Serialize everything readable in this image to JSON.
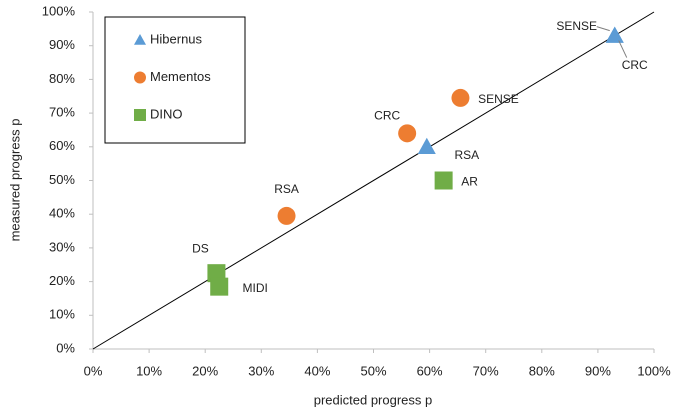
{
  "chart_data": {
    "type": "scatter",
    "xlabel": "predicted progress p",
    "ylabel": "measured progress p",
    "xlim": [
      0,
      100
    ],
    "ylim": [
      0,
      100
    ],
    "xticks": [
      {
        "value": 0,
        "label": "0%"
      },
      {
        "value": 10,
        "label": "10%"
      },
      {
        "value": 20,
        "label": "20%"
      },
      {
        "value": 30,
        "label": "30%"
      },
      {
        "value": 40,
        "label": "40%"
      },
      {
        "value": 50,
        "label": "50%"
      },
      {
        "value": 60,
        "label": "60%"
      },
      {
        "value": 70,
        "label": "70%"
      },
      {
        "value": 80,
        "label": "80%"
      },
      {
        "value": 90,
        "label": "90%"
      },
      {
        "value": 100,
        "label": "100%"
      }
    ],
    "yticks": [
      {
        "value": 0,
        "label": "0%"
      },
      {
        "value": 10,
        "label": "10%"
      },
      {
        "value": 20,
        "label": "20%"
      },
      {
        "value": 30,
        "label": "30%"
      },
      {
        "value": 40,
        "label": "40%"
      },
      {
        "value": 50,
        "label": "50%"
      },
      {
        "value": 60,
        "label": "60%"
      },
      {
        "value": 70,
        "label": "70%"
      },
      {
        "value": 80,
        "label": "80%"
      },
      {
        "value": 90,
        "label": "90%"
      },
      {
        "value": 100,
        "label": "100%"
      }
    ],
    "legend": "upper left",
    "series": [
      {
        "name": "Hibernus",
        "color": "#5b9bd5",
        "marker": "triangle",
        "x": [
          93,
          93,
          59.5
        ],
        "values": [
          93,
          93,
          60
        ],
        "point_labels": [
          "SENSE",
          "CRC",
          "RSA"
        ]
      },
      {
        "name": "Mementos",
        "color": "#ed7d31",
        "marker": "circle",
        "x": [
          34.5,
          56,
          65.5
        ],
        "values": [
          39.5,
          64,
          74.5
        ],
        "point_labels": [
          "RSA",
          "CRC",
          "SENSE"
        ]
      },
      {
        "name": "DINO",
        "color": "#70ad47",
        "marker": "square",
        "x": [
          22,
          22.5,
          62.5
        ],
        "values": [
          22.5,
          18.5,
          50
        ],
        "point_labels": [
          "DS",
          "MIDI",
          "AR"
        ]
      }
    ]
  }
}
